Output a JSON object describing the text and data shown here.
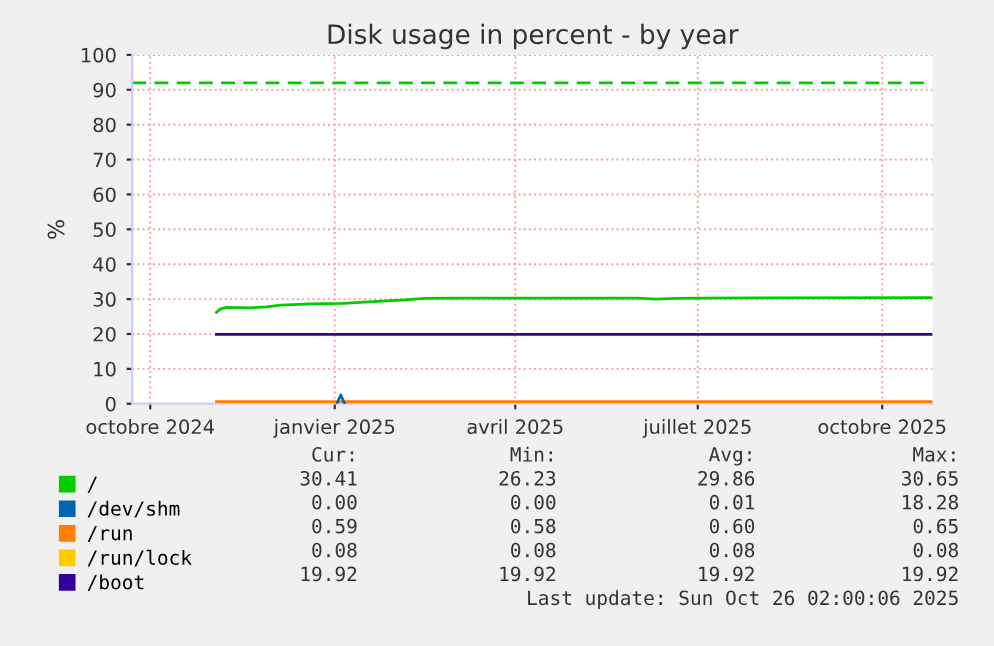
{
  "chart_data": {
    "type": "line",
    "title": "Disk usage in percent - by year",
    "ylabel": "%",
    "xlim": [
      "2024-09-22",
      "2025-10-26"
    ],
    "xticks": [
      {
        "value": "2024-10-01",
        "label": "octobre 2024"
      },
      {
        "value": "2025-01-01",
        "label": "janvier 2025"
      },
      {
        "value": "2025-04-01",
        "label": "avril 2025"
      },
      {
        "value": "2025-07-01",
        "label": "juillet 2025"
      },
      {
        "value": "2025-10-01",
        "label": "octobre 2025"
      }
    ],
    "ylim": [
      0,
      100
    ],
    "yticks": [
      0,
      10,
      20,
      30,
      40,
      50,
      60,
      70,
      80,
      90,
      100
    ],
    "grid": true,
    "legend": "bottom left",
    "line_style": "solid",
    "marker": "none",
    "series": [
      {
        "name": "/",
        "color": "#00cc00",
        "x": [
          "2024-11-03",
          "2024-11-05",
          "2024-11-08",
          "2024-11-20",
          "2024-11-28",
          "2024-12-05",
          "2024-12-20",
          "2025-01-05",
          "2025-01-20",
          "2025-02-05",
          "2025-02-15",
          "2025-03-01",
          "2025-06-01",
          "2025-06-10",
          "2025-06-20",
          "2025-07-01",
          "2025-10-26"
        ],
        "values": [
          26.2,
          27.2,
          27.6,
          27.5,
          27.8,
          28.3,
          28.6,
          28.8,
          29.3,
          29.8,
          30.2,
          30.3,
          30.3,
          30.0,
          30.2,
          30.3,
          30.4
        ]
      },
      {
        "name": "/dev/shm",
        "color": "#0066b3",
        "x": [
          "2025-01-02",
          "2025-01-04",
          "2025-01-06"
        ],
        "values": [
          0.0,
          2.5,
          0.0
        ]
      },
      {
        "name": "/run",
        "color": "#ff8000",
        "x": [
          "2024-11-03",
          "2025-10-26"
        ],
        "values": [
          0.6,
          0.6
        ]
      },
      {
        "name": "/run/lock",
        "color": "#ffcc00"
      },
      {
        "name": "/boot",
        "color": "#330099",
        "x": [
          "2024-11-03",
          "2025-10-26"
        ],
        "values": [
          19.9,
          19.9
        ]
      }
    ],
    "ref_lines": [
      {
        "axis": "y",
        "value": 92,
        "color": "#00cc00",
        "line_style": "dashed"
      }
    ],
    "annotations": [
      "Cur:",
      "Min:",
      "Avg:",
      "Max:",
      "30.41",
      "26.23",
      "29.86",
      "30.65",
      "0.00",
      "0.00",
      "0.01",
      "18.28",
      "0.59",
      "0.58",
      "0.60",
      "0.65",
      "0.08",
      "0.08",
      "0.08",
      "0.08",
      "19.92",
      "19.92",
      "19.92",
      "19.92",
      "Last update: Sun Oct 26 02:00:06 2025"
    ]
  }
}
